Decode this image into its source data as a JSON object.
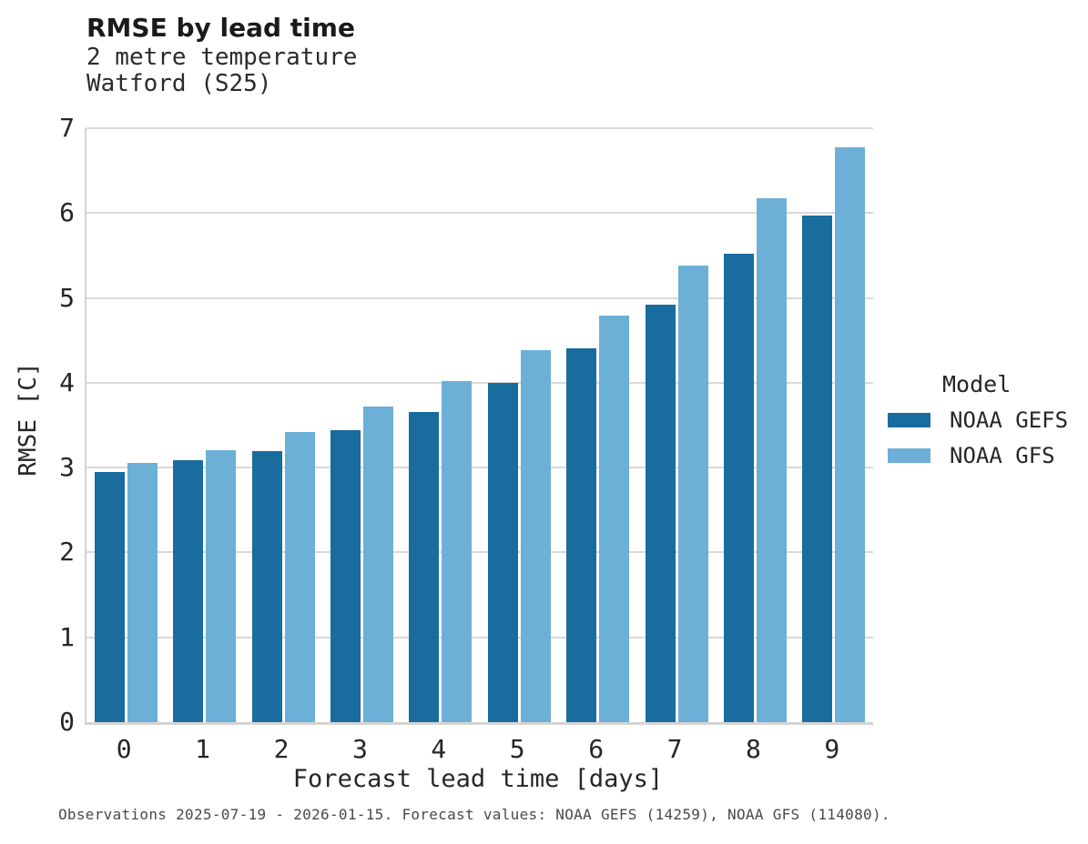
{
  "caption": "Observations 2025-07-19 - 2026-01-15. Forecast values: NOAA GEFS (14259), NOAA GFS (114080).",
  "chart_data": {
    "type": "bar",
    "title": "RMSE by lead time",
    "subtitle_lines": [
      "2 metre temperature",
      "Watford (S25)"
    ],
    "categories": [
      "0",
      "1",
      "2",
      "3",
      "4",
      "5",
      "6",
      "7",
      "8",
      "9"
    ],
    "series": [
      {
        "name": "NOAA GEFS",
        "color": "#196c9e",
        "values": [
          2.95,
          3.09,
          3.19,
          3.44,
          3.66,
          4.0,
          4.41,
          4.92,
          5.52,
          5.97
        ]
      },
      {
        "name": "NOAA GFS",
        "color": "#6cb0d8",
        "values": [
          3.06,
          3.21,
          3.42,
          3.72,
          4.02,
          4.38,
          4.79,
          5.38,
          6.17,
          6.78
        ]
      }
    ],
    "xlabel": "Forecast lead time [days]",
    "ylabel": "RMSE [C]",
    "ylim": [
      0,
      7
    ],
    "ytick_step": 1,
    "grid": true,
    "legend_title": "Model",
    "legend_position": "right-outside",
    "grid_color": "#d9d9d9",
    "axis_color": "#d4d4d4",
    "text_color": "#262626"
  }
}
